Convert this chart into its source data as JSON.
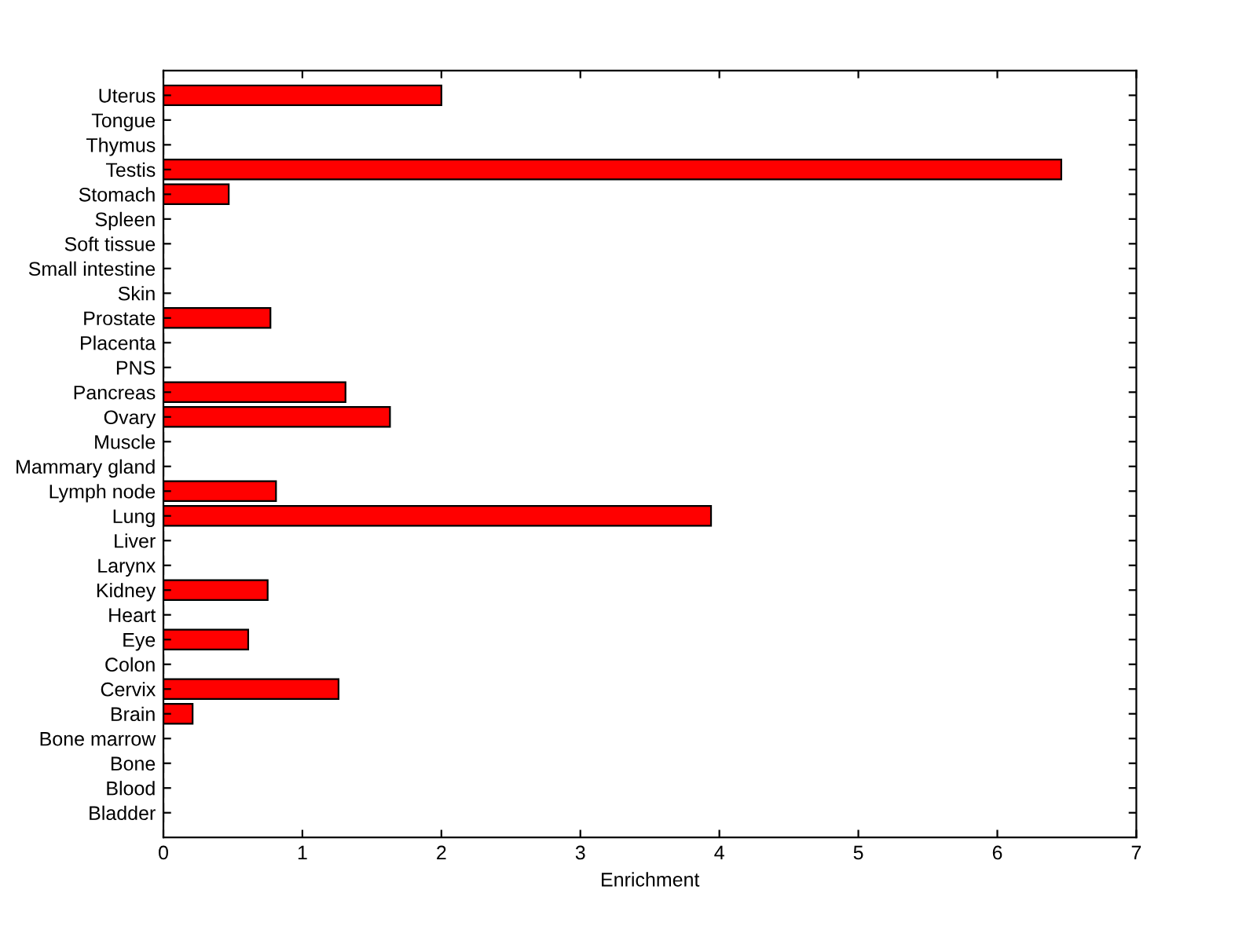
{
  "chart_data": {
    "type": "bar",
    "orientation": "horizontal",
    "xlabel": "Enrichment",
    "categories": [
      "Uterus",
      "Tongue",
      "Thymus",
      "Testis",
      "Stomach",
      "Spleen",
      "Soft tissue",
      "Small intestine",
      "Skin",
      "Prostate",
      "Placenta",
      "PNS",
      "Pancreas",
      "Ovary",
      "Muscle",
      "Mammary gland",
      "Lymph node",
      "Lung",
      "Liver",
      "Larynx",
      "Kidney",
      "Heart",
      "Eye",
      "Colon",
      "Cervix",
      "Brain",
      "Bone marrow",
      "Bone",
      "Blood",
      "Bladder"
    ],
    "values": [
      2.0,
      0,
      0,
      6.46,
      0.47,
      0,
      0,
      0,
      0,
      0.77,
      0,
      0,
      1.31,
      1.63,
      0,
      0,
      0.81,
      3.94,
      0,
      0,
      0.75,
      0,
      0.61,
      0,
      1.26,
      0.21,
      0,
      0,
      0,
      0
    ],
    "color": "#ff0000",
    "xlim": [
      0,
      7
    ],
    "xticks": [
      0,
      1,
      2,
      3,
      4,
      5,
      6,
      7
    ],
    "grid": false
  }
}
